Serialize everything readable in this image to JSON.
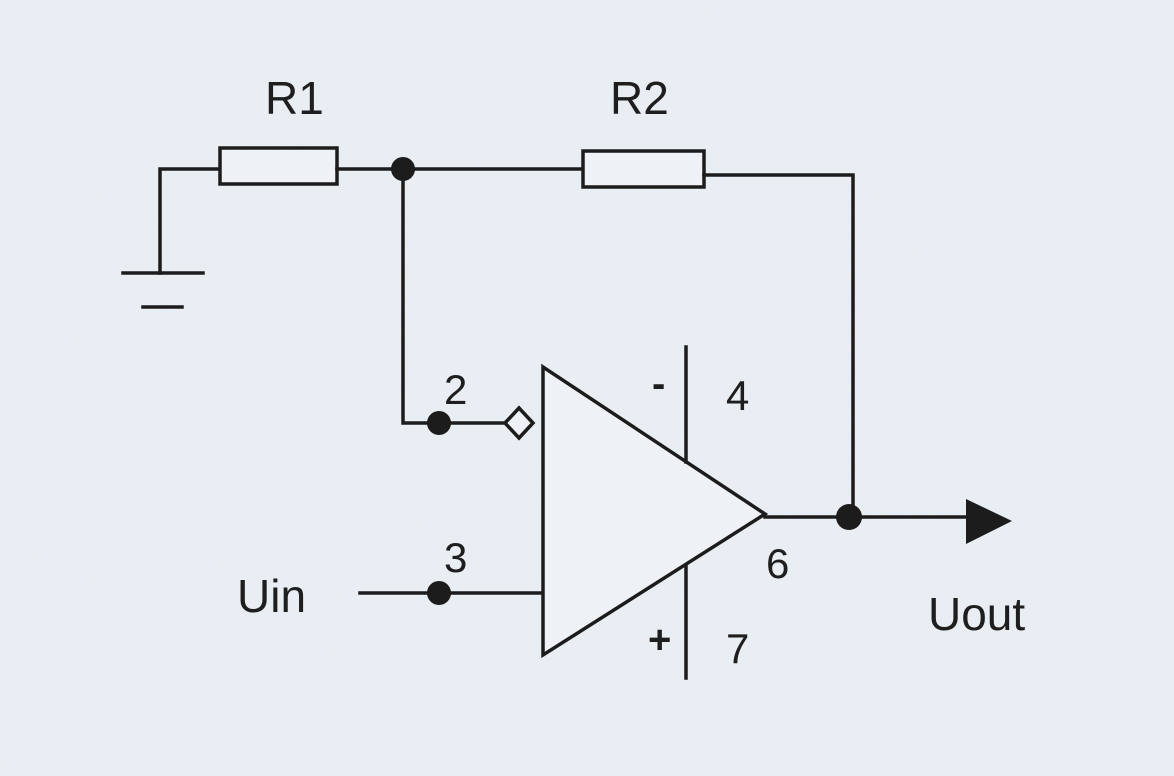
{
  "schematic": {
    "components": {
      "r1": {
        "label": "R1"
      },
      "r2": {
        "label": "R2"
      }
    },
    "opamp": {
      "pins": {
        "inverting_input": "2",
        "non_inverting_input": "3",
        "negative_supply": "4",
        "output": "6",
        "positive_supply": "7"
      },
      "negative_supply_sign": "-",
      "positive_supply_sign": "+"
    },
    "ports": {
      "input": "Uin",
      "output": "Uout"
    }
  }
}
